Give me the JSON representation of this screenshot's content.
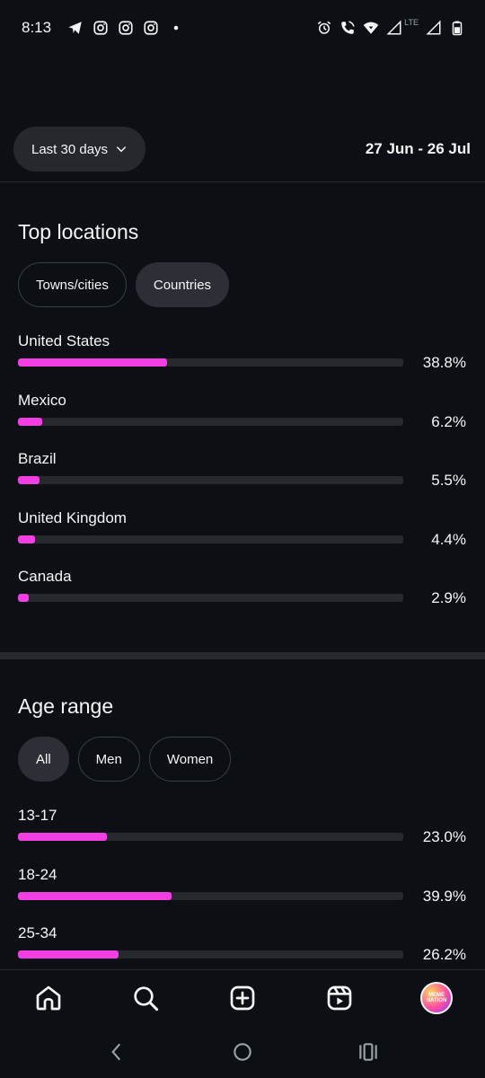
{
  "status_bar": {
    "time": "8:13",
    "network": "LTE",
    "icons_left": [
      "telegram-icon",
      "instagram-icon",
      "instagram-icon",
      "instagram-icon",
      "dot-icon"
    ],
    "icons_right": [
      "alarm-icon",
      "wifi-call-icon",
      "wifi-icon",
      "signal-icon",
      "signal-icon",
      "battery-icon"
    ]
  },
  "date_filter": {
    "label": "Last 30 days",
    "range": "27 Jun - 26 Jul"
  },
  "top_locations": {
    "title": "Top locations",
    "tabs": [
      {
        "label": "Towns/cities",
        "active": false
      },
      {
        "label": "Countries",
        "active": true
      }
    ],
    "rows": [
      {
        "label": "United States",
        "percent": "38.8%",
        "value": 38.8
      },
      {
        "label": "Mexico",
        "percent": "6.2%",
        "value": 6.2
      },
      {
        "label": "Brazil",
        "percent": "5.5%",
        "value": 5.5
      },
      {
        "label": "United Kingdom",
        "percent": "4.4%",
        "value": 4.4
      },
      {
        "label": "Canada",
        "percent": "2.9%",
        "value": 2.9
      }
    ]
  },
  "age_range": {
    "title": "Age range",
    "tabs": [
      {
        "label": "All",
        "active": true
      },
      {
        "label": "Men",
        "active": false
      },
      {
        "label": "Women",
        "active": false
      }
    ],
    "rows": [
      {
        "label": "13-17",
        "percent": "23.0%",
        "value": 23.0
      },
      {
        "label": "18-24",
        "percent": "39.9%",
        "value": 39.9
      },
      {
        "label": "25-34",
        "percent": "26.2%",
        "value": 26.2
      }
    ]
  },
  "bottom_nav": {
    "items": [
      "home-icon",
      "search-icon",
      "create-icon",
      "reels-icon",
      "profile-avatar"
    ],
    "avatar_text": "MEME NATION"
  },
  "colors": {
    "background": "#0c1014",
    "bar_fill": "#f23fe3",
    "bar_track": "#262a2f"
  }
}
